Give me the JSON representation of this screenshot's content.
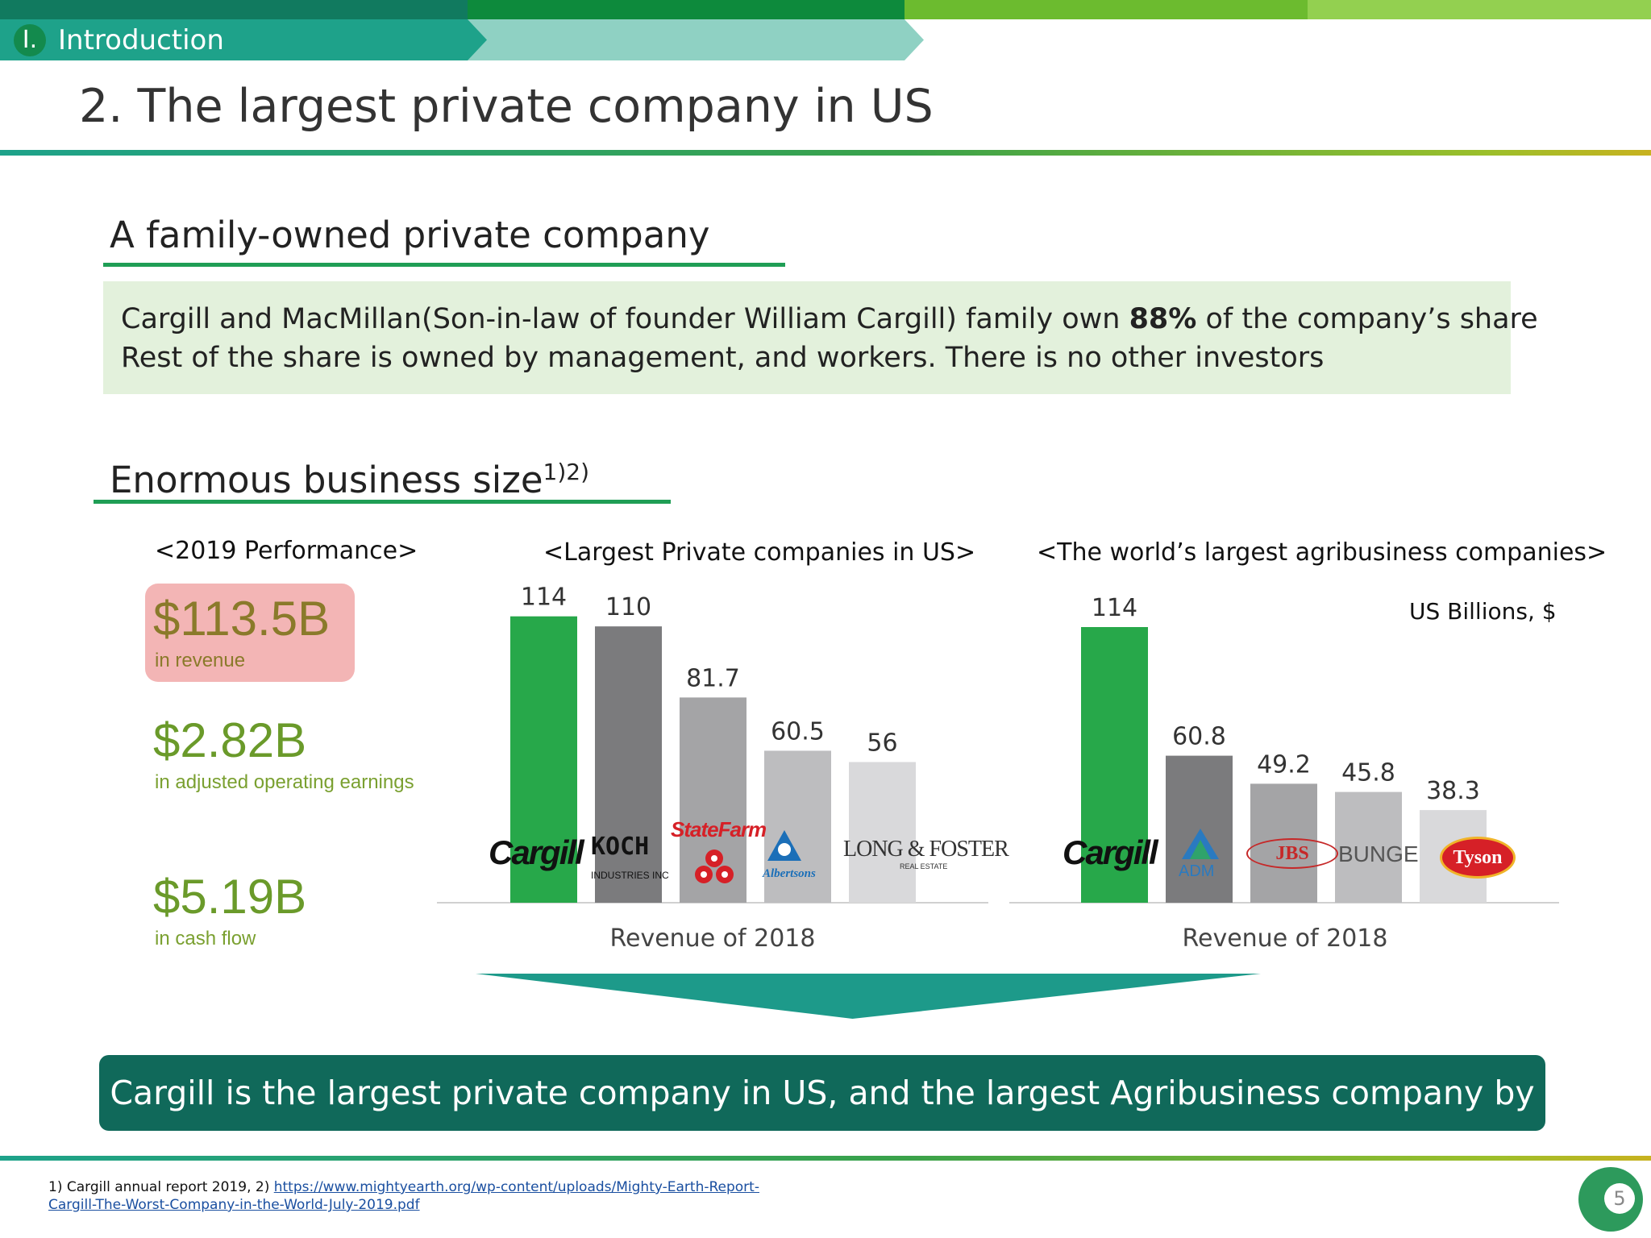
{
  "header": {
    "section_number": "I.",
    "section_label": "Introduction",
    "title": "2. The largest private company in US"
  },
  "family": {
    "heading": "A family-owned private company",
    "line1_a": "Cargill and MacMillan(Son-in-law of founder William Cargill) family own ",
    "line1_bold": "88%",
    "line1_b": " of the company’s share",
    "line2": "Rest of the share is owned by management, and workers. There is no other investors"
  },
  "business": {
    "heading": "Enormous business size",
    "heading_sup": "1)2)"
  },
  "performance": {
    "title": "<2019 Performance>",
    "items": [
      {
        "value": "$113.5B",
        "caption": "in revenue"
      },
      {
        "value": "$2.82B",
        "caption": "in adjusted operating earnings"
      },
      {
        "value": "$5.19B",
        "caption": "in cash flow"
      }
    ],
    "colors": {
      "revenue": "#8a7a2a",
      "others": "#6a9a2a",
      "caption_revenue": "#8a7a2a",
      "caption_others": "#7aa030"
    }
  },
  "chart_data": [
    {
      "type": "bar",
      "title": "<Largest Private companies in US>",
      "categories": [
        "Cargill",
        "KOCH INDUSTRIES INC",
        "StateFarm",
        "Albertsons",
        "LONG & FOSTER REAL ESTATE"
      ],
      "values": [
        114,
        110,
        81.7,
        60.5,
        56
      ],
      "value_labels": [
        "114",
        "110",
        "81.7",
        "60.5",
        "56"
      ],
      "xlabel": "Revenue of 2018",
      "ylabel": "",
      "ylim": [
        0,
        120
      ],
      "bar_colors": [
        "#27a84a",
        "#7b7b7d",
        "#a4a4a6",
        "#bdbdbf",
        "#d9d9db"
      ],
      "grid": false
    },
    {
      "type": "bar",
      "title": "<The world’s largest agribusiness companies>",
      "categories": [
        "Cargill",
        "ADM",
        "JBS",
        "BUNGE",
        "Tyson"
      ],
      "values": [
        114,
        60.8,
        49.2,
        45.8,
        38.3
      ],
      "value_labels": [
        "114",
        "60.8",
        "49.2",
        "45.8",
        "38.3"
      ],
      "unit_note": "US Billions, $",
      "xlabel": "Revenue of 2018",
      "ylabel": "",
      "ylim": [
        0,
        120
      ],
      "bar_colors": [
        "#27a84a",
        "#7b7b7d",
        "#a4a4a6",
        "#bdbdbf",
        "#d9d9db"
      ],
      "grid": false
    }
  ],
  "conclusion": "Cargill is the largest private company in US, and the largest Agribusiness company by revenue",
  "footnote": {
    "prefix": "1) Cargill annual report 2019, 2) ",
    "link_line1": "https://www.mightyearth.org/wp-content/uploads/Mighty-Earth-Report-",
    "link_line2": "Cargill-The-Worst-Company-in-the-World-July-2019.pdf"
  },
  "page_number": "5",
  "colors": {
    "primary_green": "#1f9e55",
    "teal": "#1ea28a",
    "conclusion_bg": "#10695a",
    "family_box_bg": "#e3f1dc"
  }
}
